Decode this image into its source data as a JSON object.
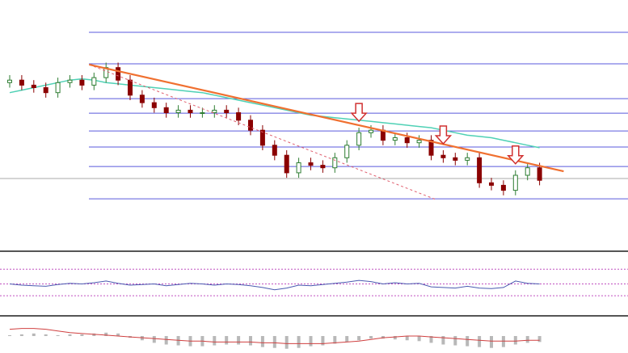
{
  "chart_data": [
    {
      "type": "candlestick",
      "ylim": [
        0,
        100
      ],
      "open": [
        67,
        68,
        66,
        65,
        63,
        67,
        68,
        66,
        69,
        73,
        68,
        62,
        59,
        57,
        55,
        56,
        55,
        55,
        56,
        55,
        52,
        48,
        42,
        38,
        31,
        35,
        34,
        33,
        37,
        42,
        47,
        48,
        44,
        45,
        43,
        44,
        38,
        37,
        36,
        37,
        27,
        26,
        24,
        30,
        33
      ],
      "high": [
        70,
        70,
        68,
        67,
        69,
        70,
        70,
        71,
        75,
        75,
        70,
        64,
        61,
        59,
        58,
        58,
        57,
        58,
        58,
        57,
        54,
        50,
        44,
        40,
        37,
        37,
        36,
        39,
        44,
        49,
        50,
        50,
        47,
        47,
        46,
        46,
        40,
        39,
        39,
        39,
        29,
        28,
        32,
        35,
        35
      ],
      "low": [
        65,
        64,
        63,
        61,
        61,
        65,
        64,
        64,
        67,
        66,
        60,
        57,
        55,
        53,
        53,
        53,
        53,
        53,
        53,
        50,
        46,
        40,
        36,
        29,
        29,
        32,
        31,
        31,
        35,
        40,
        45,
        42,
        42,
        41,
        41,
        36,
        35,
        34,
        34,
        25,
        24,
        22,
        22,
        28,
        26
      ],
      "close": [
        68,
        66,
        65,
        63,
        67,
        68,
        66,
        69,
        73,
        68,
        62,
        59,
        57,
        55,
        56,
        55,
        55,
        56,
        55,
        52,
        48,
        42,
        38,
        31,
        35,
        34,
        33,
        37,
        42,
        47,
        48,
        44,
        45,
        43,
        44,
        38,
        37,
        36,
        37,
        27,
        26,
        24,
        30,
        33,
        28
      ],
      "up_color": "#2e7d32",
      "down_color": "#8b0000",
      "moving_average": {
        "color": "#4fd1b5",
        "values": [
          63,
          64,
          65,
          66,
          67,
          68,
          68.5,
          68,
          67,
          66.5,
          66,
          65.5,
          65,
          64.5,
          64,
          63.5,
          63,
          62,
          61,
          60,
          59,
          58,
          57,
          56,
          55,
          54,
          53.5,
          53,
          52.5,
          52,
          51.5,
          51,
          50.5,
          50,
          49.5,
          49,
          48,
          47,
          46,
          45.5,
          45,
          44,
          43,
          42,
          41
        ]
      },
      "levels": {
        "color": "#5a5adc",
        "values": [
          87.1,
          74.5,
          60.6,
          54.8,
          47.7,
          41.3,
          33.5,
          20.6
        ]
      },
      "base_level": 28.7,
      "trendline": {
        "color": "#f07030",
        "x": [
          6.6,
          46
        ],
        "y": [
          74.2,
          31.6
        ]
      },
      "dashed_trendline": {
        "color": "#e06070",
        "x": [
          6.6,
          35.4
        ],
        "y": [
          74.2,
          20.3
        ]
      },
      "arrows": [
        29,
        36,
        42
      ],
      "arrow_color": "#d03030"
    },
    {
      "type": "line",
      "ylim": [
        0,
        100
      ],
      "levels": [
        75,
        50,
        30
      ],
      "color": "#4a5ab0",
      "values": [
        50,
        48,
        47,
        46,
        49,
        51,
        50,
        52,
        55,
        51,
        48,
        49,
        50,
        47,
        49,
        51,
        50,
        48,
        50,
        49,
        47,
        44,
        40,
        43,
        48,
        47,
        49,
        51,
        53,
        56,
        54,
        50,
        52,
        50,
        51,
        45,
        44,
        43,
        46,
        43,
        42,
        44,
        55,
        51,
        50
      ]
    },
    {
      "type": "histogram",
      "ylim": [
        -20,
        20
      ],
      "bar_color": "#b8b8b8",
      "signal_color": "#d04040",
      "values": [
        1,
        2,
        3,
        2,
        1,
        2,
        2,
        3,
        4,
        3,
        -2,
        -5,
        -8,
        -10,
        -11,
        -12,
        -12,
        -11,
        -10,
        -10,
        -11,
        -13,
        -14,
        -15,
        -14,
        -12,
        -11,
        -9,
        -7,
        -5,
        -3,
        -3,
        -4,
        -5,
        -6,
        -8,
        -10,
        -11,
        -12,
        -13,
        -14,
        -13,
        -10,
        -8,
        -7
      ],
      "signal": [
        8,
        9,
        9,
        8,
        6,
        4,
        3,
        2,
        1,
        0,
        -1,
        -2,
        -3,
        -4,
        -5,
        -6,
        -6,
        -7,
        -7,
        -7,
        -7,
        -8,
        -8,
        -9,
        -9,
        -9,
        -9,
        -8,
        -7,
        -6,
        -4,
        -2,
        -1,
        0,
        0,
        -1,
        -2,
        -3,
        -4,
        -5,
        -6,
        -6,
        -6,
        -5,
        -5
      ]
    }
  ]
}
